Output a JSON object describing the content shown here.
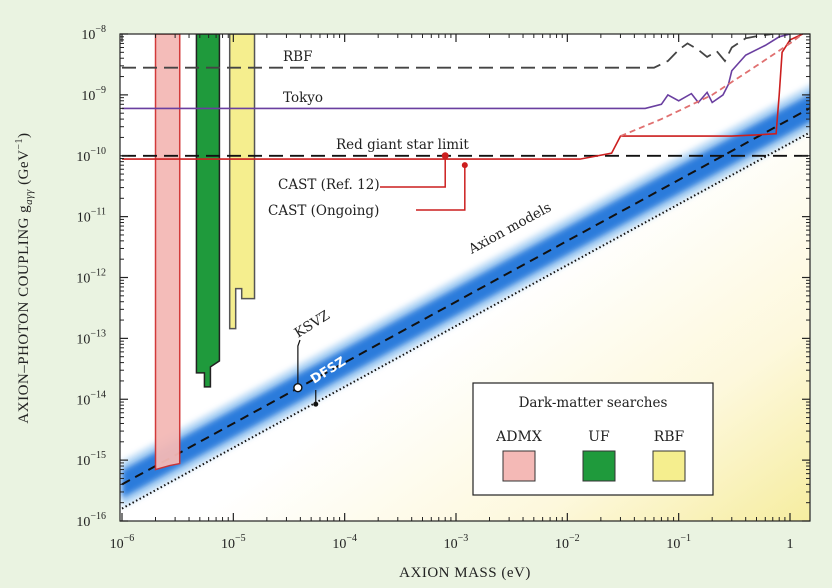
{
  "chart_data": {
    "type": "line",
    "xlabel": "AXION MASS (eV)",
    "ylabel": "AXION–PHOTON COUPLING g",
    "ylabel_sub": "aγγ",
    "ylabel_units": " (GeV",
    "ylabel_units_exp": "−1",
    "ylabel_units_close": ")",
    "x_scale": "log",
    "y_scale": "log",
    "xlim": [
      1e-06,
      2
    ],
    "ylim": [
      1e-16,
      1e-08
    ],
    "x_ticks": [
      {
        "value": 1e-06,
        "base": "10",
        "exp": "−6"
      },
      {
        "value": 1e-05,
        "base": "10",
        "exp": "−5"
      },
      {
        "value": 0.0001,
        "base": "10",
        "exp": "−4"
      },
      {
        "value": 0.001,
        "base": "10",
        "exp": "−3"
      },
      {
        "value": 0.01,
        "base": "10",
        "exp": "−2"
      },
      {
        "value": 0.1,
        "base": "10",
        "exp": "−1"
      },
      {
        "value": 1,
        "base": "1",
        "exp": ""
      }
    ],
    "y_ticks": [
      {
        "value": 1e-16,
        "base": "10",
        "exp": "−16"
      },
      {
        "value": 1e-15,
        "base": "10",
        "exp": "−15"
      },
      {
        "value": 1e-14,
        "base": "10",
        "exp": "−14"
      },
      {
        "value": 1e-13,
        "base": "10",
        "exp": "−13"
      },
      {
        "value": 1e-12,
        "base": "10",
        "exp": "−12"
      },
      {
        "value": 1e-11,
        "base": "10",
        "exp": "−11"
      },
      {
        "value": 1e-10,
        "base": "10",
        "exp": "−10"
      },
      {
        "value": 1e-09,
        "base": "10",
        "exp": "−9"
      },
      {
        "value": 1e-08,
        "base": "10",
        "exp": "−8"
      }
    ],
    "axion_band": {
      "label": "Axion models",
      "center": [
        [
          1e-06,
          4e-16
        ],
        [
          1.5,
          6e-10
        ]
      ],
      "ksvz_point": [
        3.8e-05,
        1.55e-14
      ],
      "dfsz_point": [
        5.5e-05,
        8.3e-15
      ],
      "dfsz_line": [
        [
          1e-06,
          1.6e-16
        ],
        [
          2,
          3.2e-10
        ]
      ],
      "ksvz_label": "KSVZ",
      "dfsz_label": "DFSZ"
    },
    "series": [
      {
        "name": "RBF",
        "style": "dashed",
        "color": "#444444",
        "points": [
          [
            1e-06,
            2.8e-09
          ],
          [
            0.06,
            2.8e-09
          ],
          [
            0.08,
            3.6e-09
          ],
          [
            0.1,
            5.5e-09
          ],
          [
            0.12,
            7e-09
          ],
          [
            0.15,
            5.5e-09
          ],
          [
            0.18,
            4.2e-09
          ],
          [
            0.22,
            5.2e-09
          ],
          [
            0.26,
            3.6e-09
          ],
          [
            0.3,
            6e-09
          ],
          [
            0.4,
            8.5e-09
          ],
          [
            0.55,
            9.5e-09
          ],
          [
            0.7,
            1e-08
          ]
        ]
      },
      {
        "name": "Tokyo",
        "style": "solid",
        "color": "#6a3fa0",
        "points": [
          [
            1e-06,
            6e-10
          ],
          [
            0.05,
            6e-10
          ],
          [
            0.07,
            7e-10
          ],
          [
            0.08,
            1e-09
          ],
          [
            0.1,
            8e-10
          ],
          [
            0.13,
            1.05e-09
          ],
          [
            0.15,
            7.5e-10
          ],
          [
            0.18,
            1.1e-09
          ],
          [
            0.2,
            7.5e-10
          ],
          [
            0.25,
            1e-09
          ],
          [
            0.28,
            1.5e-09
          ],
          [
            0.3,
            2.5e-09
          ],
          [
            0.4,
            4.5e-09
          ],
          [
            0.6,
            6.5e-09
          ],
          [
            0.8,
            9e-09
          ],
          [
            1,
            1e-08
          ]
        ]
      },
      {
        "name": "Red giant star limit",
        "style": "dashed",
        "color": "#111111",
        "points": [
          [
            1e-06,
            1e-10
          ],
          [
            2,
            1e-10
          ]
        ]
      },
      {
        "name": "CAST (Ref. 12)",
        "style": "solid",
        "color": "#cc1f1f",
        "points": [
          [
            1e-06,
            8.8e-11
          ],
          [
            0.013,
            8.8e-11
          ],
          [
            0.025,
            1.1e-10
          ],
          [
            0.03,
            2.1e-10
          ],
          [
            0.3,
            2.1e-10
          ],
          [
            0.5,
            2.2e-10
          ],
          [
            0.75,
            2.3e-10
          ],
          [
            0.8,
            1e-09
          ],
          [
            0.85,
            5e-09
          ],
          [
            1,
            8e-09
          ],
          [
            1.3,
            1e-08
          ]
        ]
      },
      {
        "name": "CAST (Ongoing)",
        "style": "dashed",
        "color": "#e07070",
        "points": [
          [
            0.03,
            2.1e-10
          ],
          [
            0.07,
            4e-10
          ],
          [
            0.2,
            1e-09
          ],
          [
            0.5,
            3e-09
          ],
          [
            1,
            7e-09
          ],
          [
            1.3,
            1e-08
          ]
        ]
      }
    ],
    "annotations": [
      {
        "text": "RBF"
      },
      {
        "text": "Tokyo"
      },
      {
        "text": "Red giant star limit"
      },
      {
        "text": "CAST (Ref. 12)",
        "marker": [
          0.0008,
          1e-10
        ]
      },
      {
        "text": "CAST (Ongoing)",
        "marker": [
          0.0012,
          7e-11
        ]
      }
    ],
    "exclusion_regions": [
      {
        "name": "ADMX",
        "color": "#f4b9b6",
        "edge": "#d03030",
        "x": [
          2e-06,
          3.3e-06
        ],
        "y_min": 7e-16,
        "y_max": 1e-08
      },
      {
        "name": "UF",
        "color": "#1f9a3c",
        "edge": "#222222",
        "x": [
          5.5e-06,
          7.5e-06
        ],
        "y_min": 2e-14,
        "y_max": 1e-08
      },
      {
        "name": "RBF",
        "color": "#f5ee8e",
        "edge": "#555555",
        "x": [
          1.05e-05,
          1.55e-05
        ],
        "y_min": 4.5e-13,
        "y_max": 1e-08
      }
    ],
    "legend": {
      "title": "Dark-matter searches",
      "position": "bottom-right",
      "entries": [
        {
          "label": "ADMX",
          "color": "#f4b9b6"
        },
        {
          "label": "UF",
          "color": "#1f9a3c"
        },
        {
          "label": "RBF",
          "color": "#f5ee8e"
        }
      ]
    },
    "grid": false
  }
}
